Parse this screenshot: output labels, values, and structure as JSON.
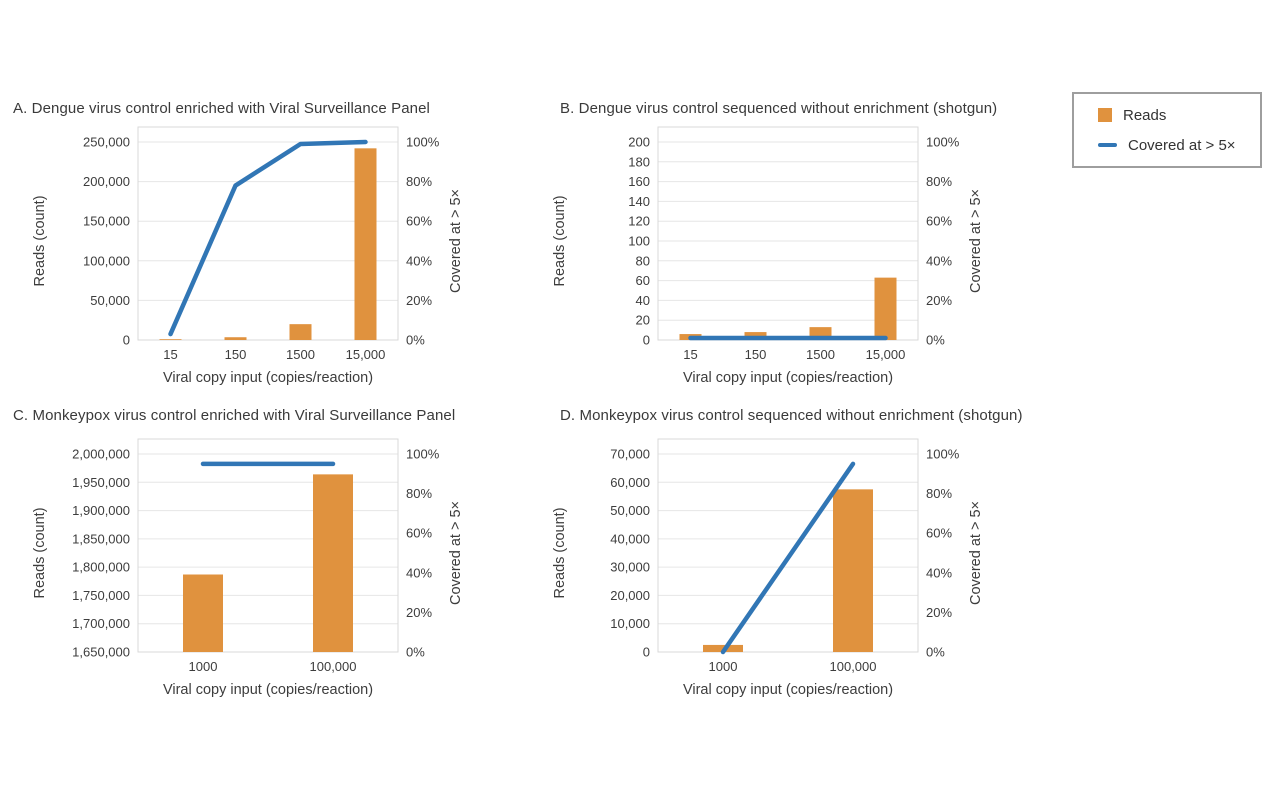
{
  "legend": {
    "items": [
      {
        "label": "Reads",
        "type": "bar",
        "color": "#E0923E"
      },
      {
        "label": "Covered at > 5×",
        "type": "line",
        "color": "#3176B5"
      }
    ]
  },
  "styles": {
    "bar_color": "#E0923E",
    "line_color": "#3176B5",
    "grid_color": "#e6e6e6",
    "border_color": "#d9d9d9",
    "text_color": "#3d3d3d"
  },
  "chart_data": [
    {
      "id": "A",
      "type": "bar",
      "title": "A. Dengue virus control enriched with Viral Surveillance Panel",
      "categories": [
        "15",
        "150",
        "1500",
        "15,000"
      ],
      "series": [
        {
          "name": "Reads",
          "type": "bar",
          "axis": "left",
          "values": [
            1000,
            3500,
            20000,
            242000
          ]
        },
        {
          "name": "Covered at > 5×",
          "type": "line",
          "axis": "right",
          "values": [
            3,
            78,
            99,
            100
          ]
        }
      ],
      "xlabel": "Viral copy input (copies/reaction)",
      "ylabel_left": "Reads (count)",
      "ylabel_right": "Covered at > 5×",
      "left_axis": {
        "min": 0,
        "max": 250000,
        "step": 50000
      },
      "right_axis": {
        "min": 0,
        "max": 100,
        "step": 20,
        "suffix": "%"
      }
    },
    {
      "id": "B",
      "type": "bar",
      "title": "B. Dengue virus control sequenced without enrichment (shotgun)",
      "categories": [
        "15",
        "150",
        "1500",
        "15,000"
      ],
      "series": [
        {
          "name": "Reads",
          "type": "bar",
          "axis": "left",
          "values": [
            6,
            8,
            13,
            63
          ]
        },
        {
          "name": "Covered at > 5×",
          "type": "line",
          "axis": "right",
          "values": [
            1,
            1,
            1,
            1
          ]
        }
      ],
      "xlabel": "Viral copy input (copies/reaction)",
      "ylabel_left": "Reads (count)",
      "ylabel_right": "Covered at > 5×",
      "left_axis": {
        "min": 0,
        "max": 200,
        "step": 20
      },
      "right_axis": {
        "min": 0,
        "max": 100,
        "step": 20,
        "suffix": "%"
      }
    },
    {
      "id": "C",
      "type": "bar",
      "title": "C. Monkeypox virus control enriched with Viral Surveillance Panel",
      "categories": [
        "1000",
        "100,000"
      ],
      "series": [
        {
          "name": "Reads",
          "type": "bar",
          "axis": "left",
          "values": [
            1787000,
            1964000
          ]
        },
        {
          "name": "Covered at > 5×",
          "type": "line",
          "axis": "right",
          "values": [
            95,
            95
          ]
        }
      ],
      "xlabel": "Viral copy input (copies/reaction)",
      "ylabel_left": "Reads (count)",
      "ylabel_right": "Covered at > 5×",
      "left_axis": {
        "min": 1650000,
        "max": 2000000,
        "step": 50000
      },
      "right_axis": {
        "min": 0,
        "max": 100,
        "step": 20,
        "suffix": "%"
      }
    },
    {
      "id": "D",
      "type": "bar",
      "title": "D. Monkeypox virus control sequenced without enrichment (shotgun)",
      "categories": [
        "1000",
        "100,000"
      ],
      "series": [
        {
          "name": "Reads",
          "type": "bar",
          "axis": "left",
          "values": [
            2500,
            57500
          ]
        },
        {
          "name": "Covered at > 5×",
          "type": "line",
          "axis": "right",
          "values": [
            0,
            95
          ]
        }
      ],
      "xlabel": "Viral copy input (copies/reaction)",
      "ylabel_left": "Reads (count)",
      "ylabel_right": "Covered at > 5×",
      "left_axis": {
        "min": 0,
        "max": 70000,
        "step": 10000
      },
      "right_axis": {
        "min": 0,
        "max": 100,
        "step": 20,
        "suffix": "%"
      }
    }
  ]
}
